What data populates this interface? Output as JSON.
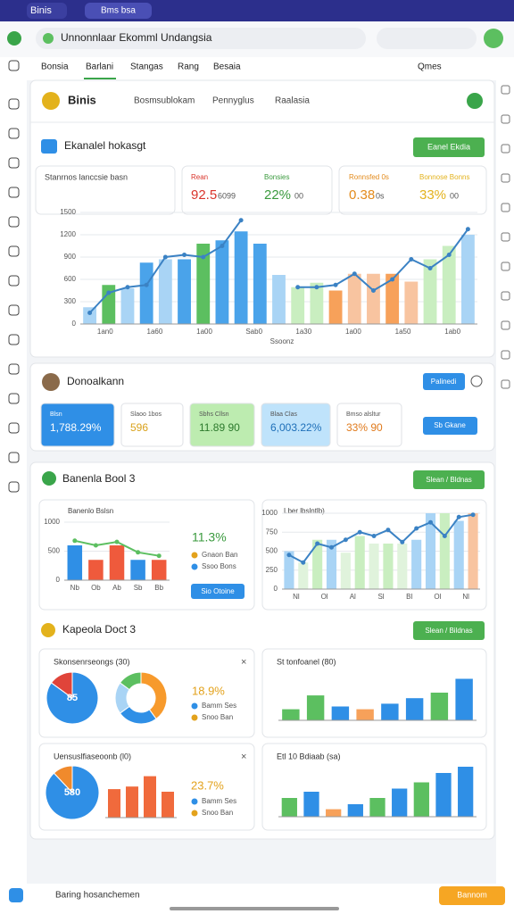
{
  "browser": {
    "tabs": [
      "Binis",
      "Bms bsa"
    ]
  },
  "header": {
    "title": "Unnonnlaar Ekomml Undangsia"
  },
  "nav": {
    "tabs": [
      "Bonsia",
      "Barlani",
      "Stangas",
      "Rang",
      "Besaia"
    ],
    "right": "Qmes"
  },
  "panel": {
    "title": "Binis",
    "tabs": [
      "Bosmsublokam",
      "Pennyglus",
      "Raalasia"
    ]
  },
  "overview": {
    "title": "Ekanalel hokasgt",
    "button": "Eanel Ekdia",
    "note": "Stanrnos lanccsie basn",
    "stats": [
      {
        "label": "Rean",
        "value": "92.5",
        "unit": "6099",
        "color": "#d9342b"
      },
      {
        "label": "Bonsies",
        "value": "22%",
        "unit": "00",
        "color": "#3a9a3e"
      },
      {
        "label": "Ronnsfed 0s",
        "value": "0.38",
        "unit": "0s",
        "color": "#e38b1c"
      },
      {
        "label": "Bonnose Bonns",
        "value": "33%",
        "unit": "00",
        "color": "#e3b21c"
      }
    ],
    "chart": {
      "ylim": [
        0,
        100
      ],
      "yticks": [
        {
          "value": 0,
          "label": "0"
        },
        {
          "value": 20,
          "label": "300"
        },
        {
          "value": 40,
          "label": "600"
        },
        {
          "value": 60,
          "label": "900"
        },
        {
          "value": 80,
          "label": "1200"
        },
        {
          "value": 100,
          "label": "1500"
        }
      ],
      "values": [
        15,
        35,
        32,
        55,
        58,
        58,
        72,
        75,
        83,
        72,
        44,
        33,
        37,
        30,
        45,
        45,
        45,
        38,
        58,
        70,
        80
      ],
      "colors": [
        "#a9d4f5",
        "#5cbf60",
        "#a9d4f5",
        "#4aa3ea",
        "#a9d4f5",
        "#4aa3ea",
        "#5cbf60",
        "#4aa3ea",
        "#4aa3ea",
        "#4aa3ea",
        "#a9d4f5",
        "#c9eec0",
        "#c9eec0",
        "#f7a15a",
        "#f8c4a0",
        "#f8c4a0",
        "#f7a15a",
        "#f8c4a0",
        "#c9eec0",
        "#c9eec0",
        "#a9d4f5"
      ],
      "line": [
        10,
        28,
        33,
        35,
        60,
        62,
        60,
        70,
        93,
        null,
        null,
        33,
        33,
        35,
        45,
        30,
        40,
        58,
        50,
        62,
        85
      ],
      "line_color": "#3b82c4",
      "xlabels": [
        "1an0",
        "1a60",
        "1a00",
        "Sab0",
        "1a30",
        "1a00",
        "1a50",
        "1ab0"
      ],
      "xtitle": "Ssoonz"
    }
  },
  "summary": {
    "title": "Donoalkann",
    "button": "Palinedi",
    "action": "Sb Gkane",
    "cards": [
      {
        "label": "Blsn",
        "value": "1,788.29%",
        "bg": "#2f8fe6",
        "fg": "#ffffff"
      },
      {
        "label": "Slaoo 1bos",
        "value": "596",
        "bg": "#ffffff",
        "fg": "#d9a21c"
      },
      {
        "label": "Sbhs Cllsn",
        "value": "11.89 90",
        "bg": "#bdecb0",
        "fg": "#2d7a2d"
      },
      {
        "label": "Blaa Clas",
        "value": "6,003.22%",
        "bg": "#bfe3fb",
        "fg": "#1e6fb8"
      },
      {
        "label": "Bmso alsltur",
        "value": "33% 90",
        "bg": "#ffffff",
        "fg": "#e07a1c"
      }
    ]
  },
  "section1": {
    "title": "Banenla Bool 3",
    "button": "Slean / Bldnas",
    "left": {
      "title": "Banenlo Bslsn",
      "value": "11.3%",
      "button": "Sio Otoine",
      "legend": [
        {
          "label": "Gnaon Ban",
          "color": "#e3a21c"
        },
        {
          "label": "Ssoo Bons",
          "color": "#2f8fe6"
        }
      ],
      "chart": {
        "ylim": [
          0,
          100
        ],
        "yticks": [
          {
            "value": 0,
            "label": "0"
          },
          {
            "value": 50,
            "label": "500"
          },
          {
            "value": 100,
            "label": "1000"
          }
        ],
        "values": [
          60,
          35,
          60,
          35,
          35
        ],
        "colors": [
          "#2f8fe6",
          "#ef5a3c",
          "#ef5a3c",
          "#2f8fe6",
          "#ef5a3c"
        ],
        "line": [
          68,
          60,
          66,
          48,
          42
        ],
        "line_color": "#5cbf60",
        "xlabels": [
          "Nb",
          "Ob",
          "Ab",
          "Sb",
          "Bb"
        ]
      }
    },
    "right": {
      "title": "Lber lbslntlb)",
      "chart": {
        "ylim": [
          0,
          100
        ],
        "yticks": [
          {
            "value": 0,
            "label": "0"
          },
          {
            "value": 25,
            "label": "250"
          },
          {
            "value": 50,
            "label": "500"
          },
          {
            "value": 75,
            "label": "750"
          },
          {
            "value": 100,
            "label": "1000"
          }
        ],
        "values": [
          50,
          35,
          65,
          65,
          48,
          70,
          60,
          60,
          60,
          65,
          100,
          100,
          90,
          100
        ],
        "colors": [
          "#a9d4f5",
          "#e0f3dc",
          "#c9eec0",
          "#a9d4f5",
          "#e0f3dc",
          "#c9eec0",
          "#e0f3dc",
          "#c9eec0",
          "#e0f3dc",
          "#a9d4f5",
          "#a9d4f5",
          "#c9eec0",
          "#a9d4f5",
          "#f8c4a0"
        ],
        "line": [
          45,
          35,
          60,
          55,
          65,
          75,
          70,
          78,
          62,
          80,
          88,
          70,
          95,
          98
        ],
        "line_color": "#3b82c4",
        "xlabels": [
          "Nl",
          "Ol",
          "Al",
          "Sl",
          "Bl",
          "Ol",
          "Nl"
        ]
      }
    }
  },
  "section2": {
    "title": "Kapeola Doct 3",
    "button": "Slean / Bildnas",
    "card1": {
      "title": "Skonsenrseongs (30)",
      "pie": {
        "values": [
          85,
          15
        ],
        "colors": [
          "#2f8fe6",
          "#e0443a"
        ],
        "label": "85"
      },
      "donut": {
        "values": [
          40,
          25,
          20,
          15
        ],
        "colors": [
          "#f79a2c",
          "#2f8fe6",
          "#a9d4f5",
          "#5cbf60"
        ]
      },
      "value": "18.9%",
      "legend": [
        {
          "label": "Bamm Ses",
          "color": "#2f8fe6"
        },
        {
          "label": "Snoo Ban",
          "color": "#e3a21c"
        }
      ]
    },
    "card2": {
      "title": "St tonfoanel (80)",
      "chart": {
        "ylim": [
          0,
          100
        ],
        "values": [
          20,
          45,
          25,
          20,
          30,
          40,
          50,
          75
        ],
        "colors": [
          "#5cbf60",
          "#5cbf60",
          "#2f8fe6",
          "#f7a15a",
          "#2f8fe6",
          "#2f8fe6",
          "#5cbf60",
          "#2f8fe6"
        ]
      }
    },
    "card3": {
      "title": "Uensuslfiaseoonb (l0)",
      "pie": {
        "values": [
          88,
          12
        ],
        "colors": [
          "#2f8fe6",
          "#f08a2c"
        ],
        "label": "580"
      },
      "chart": {
        "ylim": [
          0,
          100
        ],
        "values": [
          55,
          60,
          80,
          50
        ],
        "colors": [
          "#f06a3c",
          "#f06a3c",
          "#f06a3c",
          "#f06a3c"
        ]
      },
      "value": "23.7%",
      "legend": [
        {
          "label": "Bamm Ses",
          "color": "#2f8fe6"
        },
        {
          "label": "Snoo Ban",
          "color": "#e3a21c"
        }
      ]
    },
    "card4": {
      "title": "Etl 10 Bdiaab (sa)",
      "chart": {
        "ylim": [
          0,
          100
        ],
        "values": [
          30,
          40,
          12,
          20,
          30,
          45,
          55,
          70,
          80
        ],
        "colors": [
          "#5cbf60",
          "#2f8fe6",
          "#f7a15a",
          "#2f8fe6",
          "#5cbf60",
          "#2f8fe6",
          "#5cbf60",
          "#2f8fe6",
          "#2f8fe6"
        ]
      }
    }
  },
  "footer": {
    "text": "Baring hosanchemen",
    "button": "Bannom"
  }
}
